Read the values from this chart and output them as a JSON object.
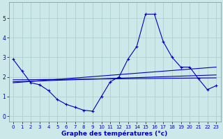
{
  "title": "Graphe des températures (°c)",
  "bg_color": "#cce8e8",
  "grid_color": "#aacccc",
  "line_color": "#0000bb",
  "marker": "+",
  "marker_size": 3,
  "line_width": 0.8,
  "xlim": [
    -0.5,
    23.5
  ],
  "ylim": [
    -0.3,
    5.8
  ],
  "yticks": [
    0,
    1,
    2,
    3,
    4,
    5
  ],
  "xticks": [
    0,
    1,
    2,
    3,
    4,
    5,
    6,
    7,
    8,
    9,
    10,
    11,
    12,
    13,
    14,
    15,
    16,
    17,
    18,
    19,
    20,
    21,
    22,
    23
  ],
  "series": [
    {
      "x": [
        0,
        1,
        2,
        3,
        4,
        5,
        6,
        7,
        8,
        9,
        10,
        11,
        12,
        13,
        14,
        15,
        16,
        17,
        18,
        19,
        20,
        21,
        22,
        23
      ],
      "y": [
        2.9,
        2.3,
        1.7,
        1.6,
        1.3,
        0.85,
        0.6,
        0.45,
        0.3,
        0.25,
        1.0,
        1.75,
        2.0,
        2.9,
        3.55,
        5.2,
        5.2,
        3.8,
        3.0,
        2.5,
        2.5,
        1.9,
        1.35,
        1.55
      ]
    },
    {
      "x": [
        0,
        23
      ],
      "y": [
        1.75,
        2.1
      ]
    },
    {
      "x": [
        0,
        23
      ],
      "y": [
        1.85,
        1.95
      ]
    },
    {
      "x": [
        0,
        23
      ],
      "y": [
        1.7,
        2.5
      ]
    }
  ]
}
